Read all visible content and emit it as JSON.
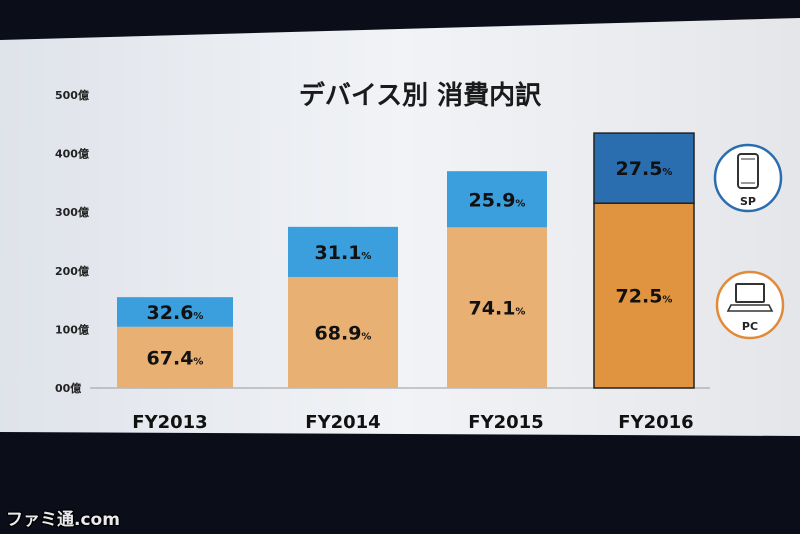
{
  "chart_data": {
    "type": "bar",
    "stacked": true,
    "title": "デバイス別 消費内訳",
    "categories": [
      "FY2013",
      "FY2014",
      "FY2015",
      "FY2016"
    ],
    "series": [
      {
        "name": "PC",
        "percent_labels": [
          "67.4",
          "68.9",
          "74.1",
          "72.5"
        ]
      },
      {
        "name": "SP",
        "percent_labels": [
          "32.6",
          "31.1",
          "25.9",
          "27.5"
        ]
      }
    ],
    "percent_suffix": "%",
    "totals": [
      155,
      275,
      370,
      435
    ],
    "ylim": [
      0,
      500
    ],
    "yticks": [
      {
        "value": 0,
        "label": "00億"
      },
      {
        "value": 100,
        "label": "100億"
      },
      {
        "value": 200,
        "label": "200億"
      },
      {
        "value": 300,
        "label": "300億"
      },
      {
        "value": 400,
        "label": "400億"
      },
      {
        "value": 500,
        "label": "500億"
      }
    ],
    "legend": [
      {
        "name": "SP",
        "icon": "smartphone-icon"
      },
      {
        "name": "PC",
        "icon": "laptop-icon"
      }
    ],
    "colors": {
      "sp": "#3a9fdc",
      "pc": "#e8b072",
      "sp_highlight": "#2a6eb0",
      "pc_highlight": "#e09440",
      "sp_icon": "#2a6eb0",
      "pc_icon": "#e08a3a"
    },
    "highlight_index": 3
  },
  "watermark": "ファミ通.com"
}
